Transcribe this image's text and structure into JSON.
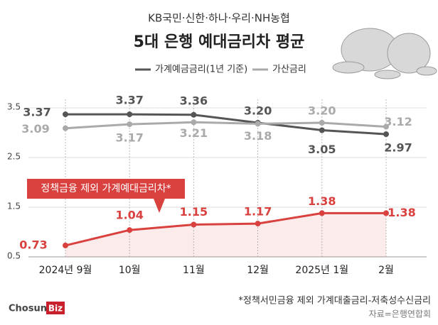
{
  "chart_data": {
    "type": "line",
    "subtitle": "KB국민·신한·하나·우리·NH농협",
    "title": "5대 은행 예대금리차 평균",
    "categories": [
      "2024년 9월",
      "10월",
      "11월",
      "12월",
      "2025년 1월",
      "2월"
    ],
    "ylim": [
      0.5,
      3.5
    ],
    "yticks": [
      0.5,
      1.5,
      2.5,
      3.5
    ],
    "grid": true,
    "series": [
      {
        "name": "가계예금금리(1년 기준)",
        "color": "#555555",
        "legend": true,
        "values": [
          3.37,
          3.37,
          3.36,
          3.2,
          3.05,
          2.97
        ],
        "value_labels": [
          "3.37",
          "3.37",
          "3.36",
          "3.20",
          "3.05",
          "2.97"
        ]
      },
      {
        "name": "가산금리",
        "color": "#aaaaaa",
        "legend": true,
        "values": [
          3.09,
          3.17,
          3.21,
          3.18,
          3.2,
          3.12
        ],
        "value_labels": [
          "3.09",
          "3.17",
          "3.21",
          "3.18",
          "3.20",
          "3.12"
        ]
      },
      {
        "name": "정책금융 제외 가계예대금리차*",
        "color": "#d9413f",
        "legend": false,
        "area": true,
        "values": [
          0.73,
          1.04,
          1.15,
          1.17,
          1.38,
          1.38
        ],
        "value_labels": [
          "0.73",
          "1.04",
          "1.15",
          "1.17",
          "1.38",
          "1.38"
        ]
      }
    ],
    "footnote": "*정책서민금융 제외 가계대출금리-저축성수신금리",
    "source": "자료=은행연합회",
    "logo": [
      "Chosun",
      "Biz"
    ]
  }
}
